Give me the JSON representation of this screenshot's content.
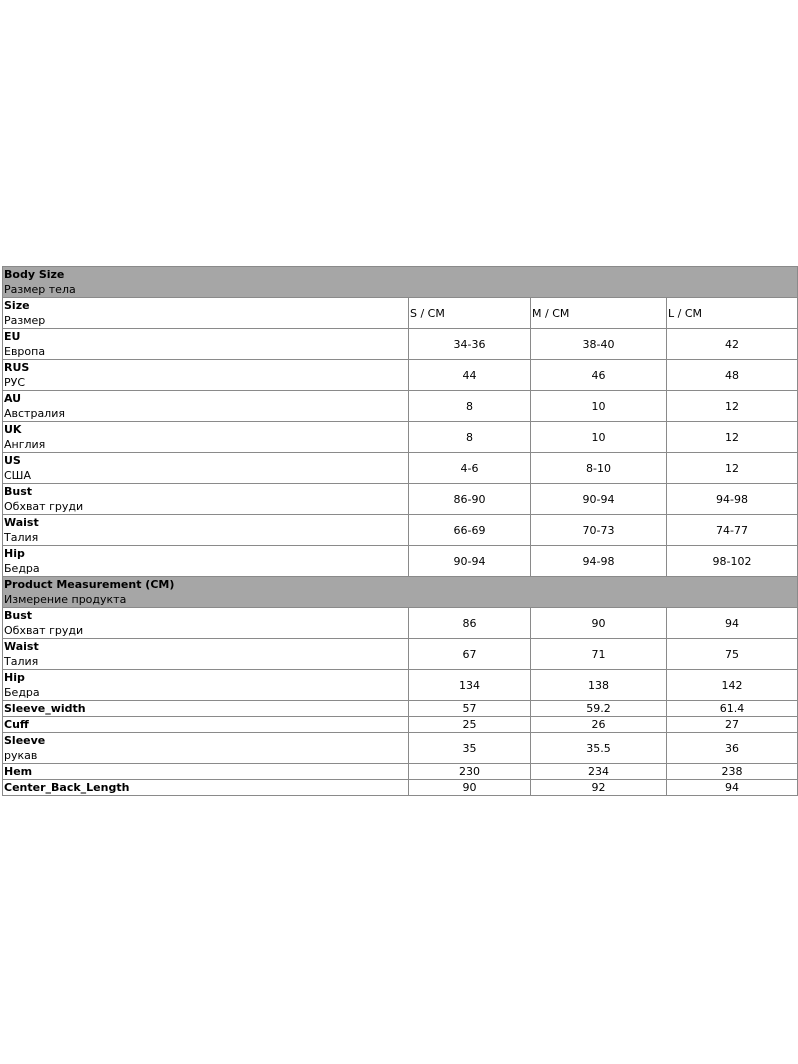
{
  "sections": [
    {
      "title": "Body Size",
      "subtitle": "Размер тела",
      "columns_label": {
        "title": "Size",
        "subtitle": "Размер"
      },
      "columns": [
        "S / CM",
        "M / CM",
        "L / CM"
      ],
      "rows": [
        {
          "title": "EU",
          "subtitle": "Европа",
          "values": [
            "34-36",
            "38-40",
            "42"
          ]
        },
        {
          "title": "RUS",
          "subtitle": "РУС",
          "values": [
            "44",
            "46",
            "48"
          ]
        },
        {
          "title": "AU",
          "subtitle": "Австралия",
          "values": [
            "8",
            "10",
            "12"
          ]
        },
        {
          "title": "UK",
          "subtitle": "Англия",
          "values": [
            "8",
            "10",
            "12"
          ]
        },
        {
          "title": "US",
          "subtitle": "США",
          "values": [
            "4-6",
            "8-10",
            "12"
          ]
        },
        {
          "title": "Bust",
          "subtitle": "Обхват груди",
          "values": [
            "86-90",
            "90-94",
            "94-98"
          ]
        },
        {
          "title": "Waist",
          "subtitle": "Талия",
          "values": [
            "66-69",
            "70-73",
            "74-77"
          ]
        },
        {
          "title": "Hip",
          "subtitle": "Бедра",
          "values": [
            "90-94",
            "94-98",
            "98-102"
          ]
        }
      ]
    },
    {
      "title": "Product Measurement (CM)",
      "subtitle": "Измерение продукта",
      "rows": [
        {
          "title": "Bust",
          "subtitle": "Обхват груди",
          "values": [
            "86",
            "90",
            "94"
          ]
        },
        {
          "title": "Waist",
          "subtitle": "Талия",
          "values": [
            "67",
            "71",
            "75"
          ]
        },
        {
          "title": "Hip",
          "subtitle": "Бедра",
          "values": [
            "134",
            "138",
            "142"
          ]
        },
        {
          "title": "Sleeve_width",
          "subtitle": "",
          "values": [
            "57",
            "59.2",
            "61.4"
          ]
        },
        {
          "title": "Cuff",
          "subtitle": "",
          "values": [
            "25",
            "26",
            "27"
          ]
        },
        {
          "title": "Sleeve",
          "subtitle": "рукав",
          "values": [
            "35",
            "35.5",
            "36"
          ]
        },
        {
          "title": "Hem",
          "subtitle": "",
          "values": [
            "230",
            "234",
            "238"
          ]
        },
        {
          "title": "Center_Back_Length",
          "subtitle": "",
          "values": [
            "90",
            "92",
            "94"
          ]
        }
      ]
    }
  ]
}
